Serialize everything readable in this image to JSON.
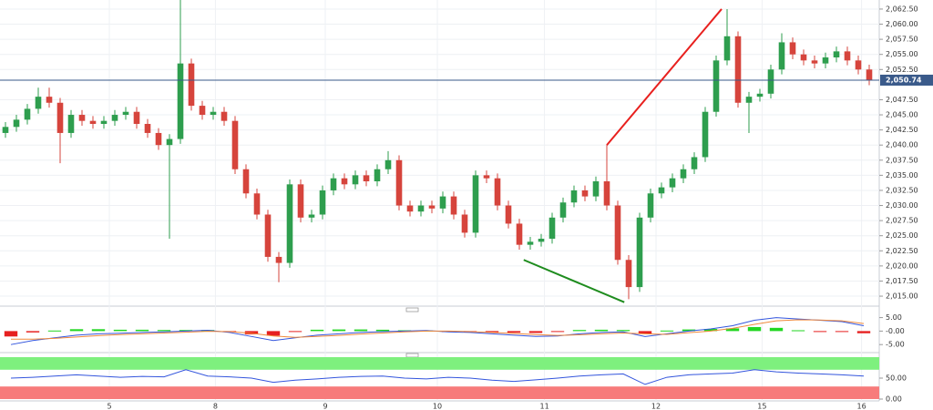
{
  "chart_data": [
    {
      "type": "candlestick",
      "grid": true,
      "up_color": "#2e9e4e",
      "down_color": "#d6443c",
      "xlim": [
        -0.5,
        79.5
      ],
      "ylim": [
        2013.5,
        2064
      ],
      "xticks": [
        {
          "value": 9.5,
          "label": "5"
        },
        {
          "value": 19.2,
          "label": "8"
        },
        {
          "value": 29.25,
          "label": "9"
        },
        {
          "value": 39.5,
          "label": "10"
        },
        {
          "value": 49.3,
          "label": "11"
        },
        {
          "value": 59.5,
          "label": "12"
        },
        {
          "value": 69.2,
          "label": "15"
        },
        {
          "value": 78.3,
          "label": "16"
        }
      ],
      "yticks": [
        {
          "value": 2015,
          "label": "2,015.00"
        },
        {
          "value": 2017.5,
          "label": "2,017.50"
        },
        {
          "value": 2020,
          "label": "2,020.00"
        },
        {
          "value": 2022.5,
          "label": "2,022.50"
        },
        {
          "value": 2025,
          "label": "2,025.00"
        },
        {
          "value": 2027.5,
          "label": "2,027.50"
        },
        {
          "value": 2030,
          "label": "2,030.00"
        },
        {
          "value": 2032.5,
          "label": "2,032.50"
        },
        {
          "value": 2035,
          "label": "2,035.00"
        },
        {
          "value": 2037.5,
          "label": "2,037.50"
        },
        {
          "value": 2040,
          "label": "2,040.00"
        },
        {
          "value": 2042.5,
          "label": "2,042.50"
        },
        {
          "value": 2045,
          "label": "2,045.00"
        },
        {
          "value": 2047.5,
          "label": "2,047.50"
        },
        {
          "value": 2052.5,
          "label": "2,052.50"
        },
        {
          "value": 2055,
          "label": "2,055.00"
        },
        {
          "value": 2057.5,
          "label": "2,057.50"
        },
        {
          "value": 2060,
          "label": "2,060.00"
        },
        {
          "value": 2062.5,
          "label": "2,062.50"
        }
      ],
      "open": [
        2042.0,
        2043.0,
        2044.2,
        2046.0,
        2048.0,
        2047.0,
        2042.0,
        2045.0,
        2044.0,
        2043.5,
        2044.0,
        2045.0,
        2045.5,
        2043.5,
        2042.0,
        2040.0,
        2041.0,
        2053.5,
        2046.5,
        2045.0,
        2045.5,
        2044.0,
        2036.0,
        2032.0,
        2028.5,
        2021.5,
        2020.5,
        2033.5,
        2028.0,
        2028.5,
        2032.5,
        2034.5,
        2033.5,
        2035.0,
        2034.0,
        2036.0,
        2037.5,
        2030.0,
        2029.0,
        2030.0,
        2029.5,
        2031.5,
        2028.5,
        2025.5,
        2035.0,
        2034.5,
        2030.0,
        2027.0,
        2023.5,
        2024.0,
        2024.5,
        2028.0,
        2030.5,
        2032.5,
        2031.5,
        2034.0,
        2030.0,
        2021.0,
        2016.5,
        2028.0,
        2032.0,
        2033.0,
        2034.5,
        2036.0,
        2038.0,
        2045.5,
        2054.0,
        2058.0,
        2047.0,
        2048.0,
        2048.5,
        2052.5,
        2057.0,
        2055.0,
        2054.0,
        2053.5,
        2054.5,
        2055.5,
        2054.0,
        2052.5
      ],
      "high": [
        2043.8,
        2045.0,
        2046.8,
        2049.5,
        2049.5,
        2047.8,
        2045.8,
        2045.8,
        2044.8,
        2044.8,
        2045.8,
        2046.3,
        2046.3,
        2044.3,
        2042.8,
        2041.8,
        2064.0,
        2054.3,
        2047.3,
        2046.3,
        2046.3,
        2044.8,
        2036.8,
        2032.8,
        2029.3,
        2022.3,
        2034.3,
        2034.3,
        2029.3,
        2033.3,
        2035.3,
        2035.3,
        2035.8,
        2035.8,
        2036.8,
        2039.0,
        2038.3,
        2030.8,
        2030.8,
        2030.8,
        2032.3,
        2032.3,
        2029.3,
        2035.8,
        2035.8,
        2035.3,
        2030.8,
        2027.8,
        2024.8,
        2025.3,
        2028.8,
        2031.3,
        2033.3,
        2033.3,
        2034.8,
        2040.0,
        2030.8,
        2021.8,
        2028.8,
        2032.8,
        2033.8,
        2035.3,
        2036.8,
        2038.8,
        2046.3,
        2054.8,
        2062.5,
        2058.8,
        2048.8,
        2049.3,
        2053.3,
        2058.5,
        2057.8,
        2055.8,
        2054.8,
        2055.3,
        2056.3,
        2056.3,
        2054.8,
        2053.3
      ],
      "low": [
        2041.2,
        2042.2,
        2043.4,
        2045.2,
        2046.2,
        2037.0,
        2041.2,
        2043.2,
        2042.7,
        2042.7,
        2043.2,
        2044.2,
        2042.7,
        2041.2,
        2039.2,
        2024.5,
        2040.2,
        2045.7,
        2044.2,
        2044.2,
        2043.2,
        2035.2,
        2031.2,
        2027.7,
        2020.7,
        2017.3,
        2019.7,
        2027.2,
        2027.2,
        2027.7,
        2031.7,
        2032.7,
        2032.7,
        2033.2,
        2033.2,
        2035.2,
        2029.2,
        2028.2,
        2028.2,
        2028.7,
        2028.7,
        2027.7,
        2024.7,
        2024.7,
        2033.7,
        2029.2,
        2026.2,
        2022.7,
        2022.7,
        2023.2,
        2023.7,
        2027.2,
        2029.7,
        2030.7,
        2030.7,
        2029.2,
        2020.2,
        2014.5,
        2015.7,
        2027.2,
        2031.2,
        2032.2,
        2033.7,
        2035.2,
        2037.2,
        2044.7,
        2053.2,
        2046.2,
        2042.0,
        2047.2,
        2047.7,
        2051.7,
        2054.2,
        2053.2,
        2052.7,
        2052.7,
        2053.7,
        2053.2,
        2051.7,
        2049.9
      ],
      "close": [
        2043.0,
        2044.2,
        2046.0,
        2048.0,
        2047.0,
        2042.0,
        2045.0,
        2044.0,
        2043.5,
        2044.0,
        2045.0,
        2045.5,
        2043.5,
        2042.0,
        2040.0,
        2041.0,
        2053.5,
        2046.5,
        2045.0,
        2045.5,
        2044.0,
        2036.0,
        2032.0,
        2028.5,
        2021.5,
        2020.5,
        2033.5,
        2028.0,
        2028.5,
        2032.5,
        2034.5,
        2033.5,
        2035.0,
        2034.0,
        2036.0,
        2037.5,
        2030.0,
        2029.0,
        2030.0,
        2029.5,
        2031.5,
        2028.5,
        2025.5,
        2035.0,
        2034.5,
        2030.0,
        2027.0,
        2023.5,
        2024.0,
        2024.5,
        2028.0,
        2030.5,
        2032.5,
        2031.5,
        2034.0,
        2030.0,
        2021.0,
        2016.5,
        2028.0,
        2032.0,
        2033.0,
        2034.5,
        2036.0,
        2038.0,
        2045.5,
        2054.0,
        2058.0,
        2047.0,
        2048.0,
        2048.5,
        2052.5,
        2057.0,
        2055.0,
        2054.0,
        2053.5,
        2054.5,
        2055.5,
        2054.0,
        2052.5,
        2050.74
      ],
      "last_price": {
        "value": 2050.74,
        "label": "2,050.74",
        "color": "#3a5a8a"
      },
      "trend_lines": [
        {
          "color": "#e8201e",
          "x": [
            55,
            65.5
          ],
          "y": [
            2040,
            2062.5
          ]
        },
        {
          "color": "#1e8c1e",
          "x": [
            47.4,
            56.6
          ],
          "y": [
            2021,
            2014
          ]
        }
      ]
    },
    {
      "type": "macd",
      "xlim": [
        -0.5,
        39.5
      ],
      "ylim": [
        -7.3,
        7.9
      ],
      "yticks": [
        {
          "value": 5,
          "label": "5.00"
        },
        {
          "value": 0,
          "label": "-0.00"
        },
        {
          "value": -5,
          "label": "-5.00"
        }
      ],
      "histogram": {
        "up_color": "#22d622",
        "down_color": "#e62020",
        "values": [
          -2,
          -0.5,
          0.2,
          0.7,
          0.7,
          0.5,
          0.5,
          0.4,
          0.4,
          0.4,
          -0.3,
          -1.2,
          -1.7,
          -0.2,
          0.5,
          0.6,
          0.6,
          0.5,
          0.3,
          0.2,
          -0.3,
          -0.3,
          -0.5,
          -0.6,
          -0.7,
          -0.2,
          0.4,
          0.5,
          0.4,
          -1,
          0.2,
          0.6,
          0.8,
          1,
          1.5,
          1.2,
          0.3,
          -0.1,
          -0.3,
          -0.8
        ]
      },
      "series": [
        {
          "color": "#3355dd",
          "values": [
            -5,
            -3.5,
            -2.5,
            -1.5,
            -1,
            -0.8,
            -0.5,
            -0.3,
            0,
            0.3,
            -0.5,
            -2,
            -3.5,
            -2.5,
            -1.5,
            -1,
            -0.5,
            -0.2,
            0,
            0.2,
            -0.3,
            -0.5,
            -1,
            -1.5,
            -2,
            -1.8,
            -1,
            -0.5,
            -0.3,
            -2,
            -1,
            0,
            0.8,
            2,
            4,
            5,
            4.5,
            4,
            3.5,
            2
          ]
        },
        {
          "color": "#f08a3c",
          "values": [
            -3,
            -3,
            -2.7,
            -2.2,
            -1.7,
            -1.3,
            -1,
            -0.7,
            -0.4,
            -0.1,
            -0.2,
            -0.8,
            -1.8,
            -2.3,
            -2,
            -1.6,
            -1.1,
            -0.7,
            -0.3,
            0,
            0,
            -0.2,
            -0.5,
            -0.9,
            -1.3,
            -1.6,
            -1.4,
            -1,
            -0.7,
            -1,
            -1.2,
            -0.6,
            0,
            1,
            2.5,
            3.8,
            4.2,
            4.1,
            3.8,
            2.8
          ]
        }
      ]
    },
    {
      "type": "line",
      "xlim": [
        -0.5,
        39.5
      ],
      "ylim": [
        0,
        100
      ],
      "yticks": [
        {
          "value": 50,
          "label": "50.00"
        },
        {
          "value": 0,
          "label": "0.00"
        }
      ],
      "overbought": 70,
      "oversold": 30,
      "overbought_color": "#7ef07e",
      "oversold_color": "#f77b7b",
      "color": "#3355dd",
      "values": [
        50,
        52,
        55,
        58,
        55,
        52,
        54,
        53,
        70,
        55,
        53,
        50,
        40,
        45,
        48,
        52,
        54,
        55,
        50,
        48,
        52,
        50,
        45,
        42,
        46,
        50,
        55,
        58,
        60,
        35,
        52,
        58,
        60,
        62,
        70,
        65,
        62,
        60,
        58,
        55
      ]
    }
  ]
}
